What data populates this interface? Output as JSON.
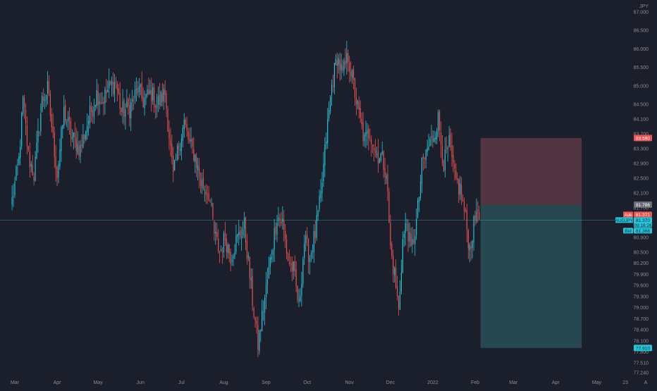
{
  "currency_label": "JPY",
  "colors": {
    "background": "#1b1e2b",
    "up": "#26c6da",
    "down": "#ef5350",
    "text": "#8a8d96",
    "stop_zone": "#5c3a44",
    "target_zone": "#2e5a63",
    "price_line": "#2bb6c6"
  },
  "chart_data": {
    "type": "candlestick",
    "symbol": "AUDJPY",
    "ylim": [
      77.24,
      87.0
    ],
    "y_ticks": [
      "87.000",
      "86.500",
      "86.000",
      "85.500",
      "85.000",
      "84.500",
      "84.100",
      "83.700",
      "83.300",
      "82.900",
      "82.500",
      "82.100",
      "81.700",
      "81.300",
      "80.900",
      "80.500",
      "80.200",
      "79.900",
      "79.600",
      "79.300",
      "79.000",
      "78.700",
      "78.400",
      "78.100",
      "77.800",
      "77.510",
      "77.240"
    ],
    "x_ticks": [
      {
        "label": "Mar",
        "day": 2
      },
      {
        "label": "Apr",
        "day": 33
      },
      {
        "label": "May",
        "day": 63
      },
      {
        "label": "Jun",
        "day": 94
      },
      {
        "label": "Jul",
        "day": 124
      },
      {
        "label": "Aug",
        "day": 155
      },
      {
        "label": "Sep",
        "day": 186
      },
      {
        "label": "Oct",
        "day": 216
      },
      {
        "label": "Nov",
        "day": 247
      },
      {
        "label": "Dec",
        "day": 277
      },
      {
        "label": "2022",
        "day": 308
      },
      {
        "label": "Feb",
        "day": 339
      },
      {
        "label": "Mar",
        "day": 367
      },
      {
        "label": "Apr",
        "day": 398
      },
      {
        "label": "May",
        "day": 428
      },
      {
        "label": "23",
        "day": 449
      }
    ],
    "x_domain": [
      0,
      453
    ],
    "anchors": [
      [
        0,
        81.9
      ],
      [
        5,
        83.0
      ],
      [
        8,
        84.6
      ],
      [
        12,
        83.1
      ],
      [
        16,
        82.6
      ],
      [
        22,
        84.6
      ],
      [
        26,
        84.9
      ],
      [
        33,
        82.6
      ],
      [
        38,
        84.3
      ],
      [
        44,
        83.6
      ],
      [
        50,
        83.3
      ],
      [
        56,
        84.1
      ],
      [
        62,
        84.8
      ],
      [
        66,
        84.6
      ],
      [
        72,
        85.0
      ],
      [
        76,
        85.1
      ],
      [
        80,
        84.3
      ],
      [
        86,
        84.4
      ],
      [
        92,
        84.9
      ],
      [
        96,
        84.6
      ],
      [
        102,
        84.8
      ],
      [
        106,
        84.5
      ],
      [
        112,
        84.8
      ],
      [
        118,
        82.5
      ],
      [
        122,
        83.4
      ],
      [
        126,
        84.0
      ],
      [
        130,
        83.4
      ],
      [
        134,
        83.1
      ],
      [
        138,
        82.4
      ],
      [
        144,
        82.1
      ],
      [
        148,
        81.0
      ],
      [
        152,
        80.5
      ],
      [
        156,
        80.9
      ],
      [
        160,
        80.4
      ],
      [
        164,
        80.8
      ],
      [
        170,
        81.2
      ],
      [
        176,
        79.2
      ],
      [
        180,
        78.0
      ],
      [
        184,
        79.0
      ],
      [
        190,
        80.5
      ],
      [
        194,
        81.5
      ],
      [
        198,
        81.3
      ],
      [
        202,
        80.3
      ],
      [
        206,
        80.0
      ],
      [
        210,
        79.0
      ],
      [
        214,
        80.8
      ],
      [
        218,
        80.4
      ],
      [
        222,
        81.0
      ],
      [
        226,
        82.0
      ],
      [
        230,
        83.6
      ],
      [
        234,
        85.0
      ],
      [
        238,
        85.8
      ],
      [
        242,
        85.3
      ],
      [
        246,
        85.8
      ],
      [
        250,
        85.0
      ],
      [
        254,
        84.2
      ],
      [
        258,
        83.5
      ],
      [
        262,
        83.8
      ],
      [
        266,
        83.2
      ],
      [
        270,
        83.1
      ],
      [
        274,
        82.7
      ],
      [
        277,
        80.6
      ],
      [
        280,
        79.9
      ],
      [
        283,
        78.9
      ],
      [
        286,
        80.8
      ],
      [
        289,
        81.3
      ],
      [
        292,
        80.5
      ],
      [
        296,
        81.3
      ],
      [
        300,
        82.8
      ],
      [
        304,
        83.3
      ],
      [
        308,
        83.6
      ],
      [
        312,
        84.1
      ],
      [
        316,
        82.9
      ],
      [
        320,
        83.4
      ],
      [
        324,
        82.5
      ],
      [
        328,
        82.2
      ],
      [
        332,
        81.4
      ],
      [
        335,
        80.6
      ],
      [
        338,
        81.2
      ],
      [
        341,
        81.85
      ],
      [
        342,
        81.37
      ]
    ],
    "last_price": 81.37,
    "last_price_label": "81.370",
    "countdown": "09:16:26",
    "bid_label": "Bid",
    "bid_value": "81.368",
    "ask_label": "Ask",
    "ask_value": "81.371",
    "position": {
      "type": "short",
      "start_day": 343,
      "end_day": 417,
      "entry": 81.786,
      "entry_label": "81.786",
      "stop": 83.59,
      "stop_label": "83.590",
      "target": 77.91,
      "target_label": "77.910"
    }
  },
  "footer": {
    "settings_label": "A"
  }
}
